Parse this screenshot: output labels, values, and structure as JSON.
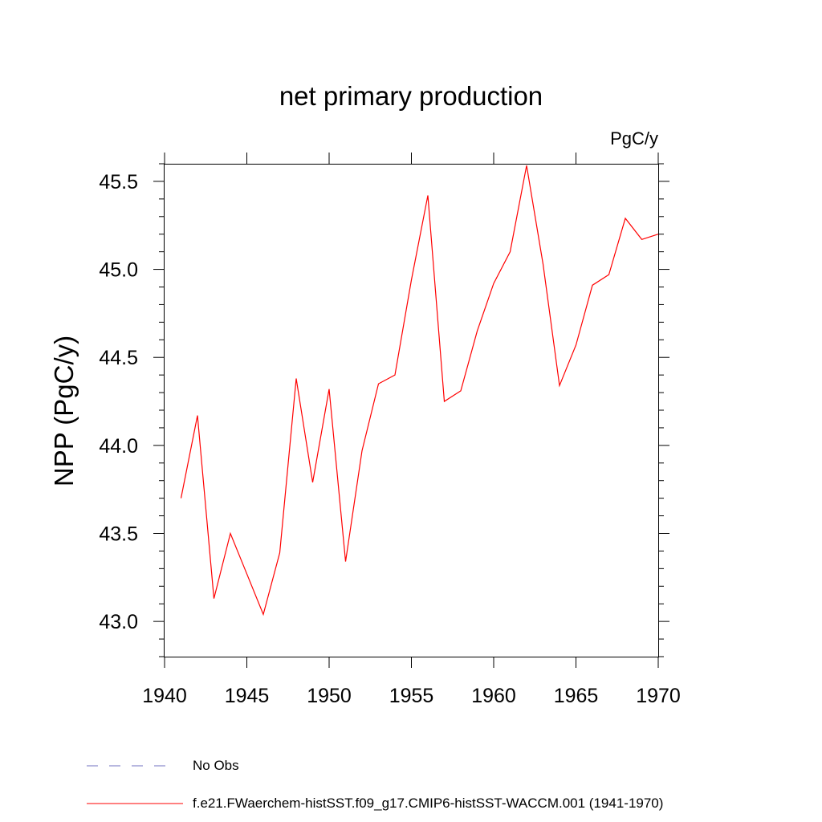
{
  "chart_data": {
    "type": "line",
    "title": "net primary production",
    "units_label": "PgC/y",
    "xlabel": "",
    "ylabel": "NPP  (PgC/y)",
    "xlim": [
      1940,
      1970
    ],
    "ylim": [
      42.8,
      45.6
    ],
    "x_ticks": [
      "1940",
      "1945",
      "1950",
      "1955",
      "1960",
      "1965",
      "1970"
    ],
    "y_ticks": [
      "43.0",
      "43.5",
      "44.0",
      "44.5",
      "45.0",
      "45.5"
    ],
    "grid": false,
    "series": [
      {
        "name": "f.e21.FWaerchem-histSST.f09_g17.CMIP6-histSST-WACCM.001 (1941-1970)",
        "color": "#ff0000",
        "x": [
          1941,
          1942,
          1943,
          1944,
          1945,
          1946,
          1947,
          1948,
          1949,
          1950,
          1951,
          1952,
          1953,
          1954,
          1955,
          1956,
          1957,
          1958,
          1959,
          1960,
          1961,
          1962,
          1963,
          1964,
          1965,
          1966,
          1967,
          1968,
          1969,
          1970
        ],
        "values": [
          43.7,
          44.17,
          43.13,
          43.5,
          43.27,
          43.04,
          43.39,
          44.38,
          43.79,
          44.32,
          43.34,
          43.97,
          44.35,
          44.4,
          44.94,
          45.42,
          44.25,
          44.31,
          44.65,
          44.92,
          45.1,
          45.59,
          45.03,
          44.34,
          44.57,
          44.91,
          44.97,
          45.29,
          45.17,
          45.2
        ]
      }
    ],
    "legend": [
      {
        "label": "No Obs",
        "color": "#7070c0",
        "style": "dashed"
      },
      {
        "label": "f.e21.FWaerchem-histSST.f09_g17.CMIP6-histSST-WACCM.001 (1941-1970)",
        "color": "#ff0000",
        "style": "solid"
      }
    ]
  }
}
